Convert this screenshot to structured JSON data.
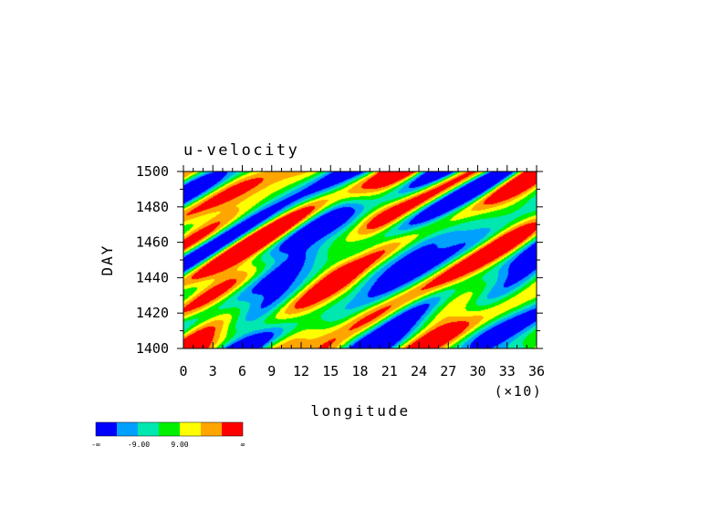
{
  "chart_data": {
    "type": "heatmap",
    "title": "u-velocity",
    "xlabel": "longitude",
    "ylabel": "DAY",
    "x_multiplier_label": "(×10)",
    "x_ticks": [
      0,
      3,
      6,
      9,
      12,
      15,
      18,
      21,
      24,
      27,
      30,
      33,
      36
    ],
    "x_tick_labels": [
      "0",
      "3",
      "6",
      "9",
      "12",
      "15",
      "18",
      "21",
      "24",
      "27",
      "30",
      "33",
      "36"
    ],
    "xlim": [
      0,
      36
    ],
    "y_ticks": [
      1400,
      1420,
      1440,
      1460,
      1480,
      1500
    ],
    "y_tick_labels": [
      "1400",
      "1420",
      "1440",
      "1460",
      "1480",
      "1500"
    ],
    "ylim": [
      1400,
      1500
    ],
    "colorbar": {
      "colors": [
        "#0000ff",
        "#00a0ff",
        "#00e8b0",
        "#00f000",
        "#ffff00",
        "#ffa500",
        "#ff0000"
      ],
      "labels": [
        "-∞",
        "-9.00",
        "9.00",
        "∞"
      ]
    }
  }
}
